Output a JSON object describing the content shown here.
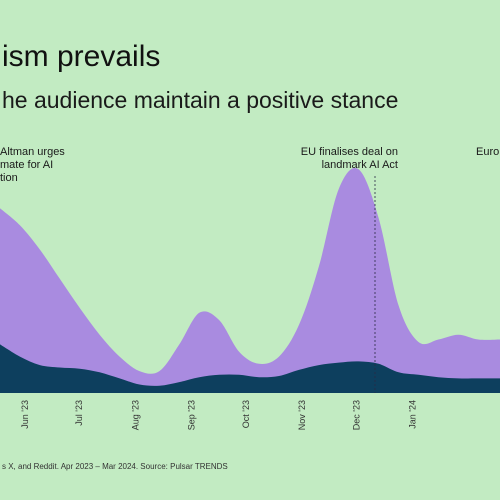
{
  "header": {
    "title": "ism prevails",
    "subtitle": "he audience maintain a positive stance"
  },
  "source": "s X, and Reddit. Apr 2023 – Mar 2024. Source: Pulsar TRENDS",
  "colors": {
    "background": "#c2ebc2",
    "positive": "#a98be0",
    "negative": "#0d3f5e"
  },
  "chart_data": {
    "type": "area",
    "stacked": true,
    "grid": false,
    "legend": "none",
    "x_range": [
      "2023-05-15",
      "2024-02-15"
    ],
    "y_range": [
      0,
      100
    ],
    "tick_labels": [
      "Jun '23",
      "Jul '23",
      "Aug '23",
      "Sep '23",
      "Oct '23",
      "Nov '23",
      "Dec '23",
      "Jan '24"
    ],
    "tick_dates": [
      "2023-06-01",
      "2023-07-01",
      "2023-08-01",
      "2023-09-01",
      "2023-10-01",
      "2023-11-01",
      "2023-12-01",
      "2024-01-01"
    ],
    "series": [
      {
        "points": [
          [
            "2023-05-15",
            20
          ],
          [
            "2023-05-26",
            15
          ],
          [
            "2023-06-06",
            11.5
          ],
          [
            "2023-06-17",
            10.5
          ],
          [
            "2023-06-28",
            10
          ],
          [
            "2023-07-09",
            8.5
          ],
          [
            "2023-07-20",
            6
          ],
          [
            "2023-07-31",
            3.5
          ],
          [
            "2023-08-11",
            3
          ],
          [
            "2023-08-22",
            4.5
          ],
          [
            "2023-09-02",
            6.5
          ],
          [
            "2023-09-13",
            7.5
          ],
          [
            "2023-09-24",
            7.5
          ],
          [
            "2023-10-05",
            6.5
          ],
          [
            "2023-10-16",
            7
          ],
          [
            "2023-10-27",
            9.5
          ],
          [
            "2023-11-07",
            11.5
          ],
          [
            "2023-11-18",
            12.5
          ],
          [
            "2023-11-29",
            13
          ],
          [
            "2023-12-10",
            12
          ],
          [
            "2023-12-21",
            8.5
          ],
          [
            "2024-01-01",
            7.5
          ],
          [
            "2024-01-12",
            6.5
          ],
          [
            "2024-01-23",
            6
          ],
          [
            "2024-02-03",
            6
          ],
          [
            "2024-02-15",
            6
          ]
        ]
      },
      {
        "points": [
          [
            "2023-05-15",
            76
          ],
          [
            "2023-05-26",
            69
          ],
          [
            "2023-06-06",
            59
          ],
          [
            "2023-06-17",
            47
          ],
          [
            "2023-06-28",
            35
          ],
          [
            "2023-07-09",
            24
          ],
          [
            "2023-07-20",
            15
          ],
          [
            "2023-07-31",
            9
          ],
          [
            "2023-08-11",
            9
          ],
          [
            "2023-08-22",
            20
          ],
          [
            "2023-09-02",
            33
          ],
          [
            "2023-09-13",
            30
          ],
          [
            "2023-09-24",
            17
          ],
          [
            "2023-10-05",
            12
          ],
          [
            "2023-10-16",
            15
          ],
          [
            "2023-10-27",
            28
          ],
          [
            "2023-11-07",
            52
          ],
          [
            "2023-11-18",
            84
          ],
          [
            "2023-11-29",
            92
          ],
          [
            "2023-12-10",
            72
          ],
          [
            "2023-12-21",
            36
          ],
          [
            "2024-01-01",
            21
          ],
          [
            "2024-01-12",
            22
          ],
          [
            "2024-01-23",
            24
          ],
          [
            "2024-02-03",
            22
          ],
          [
            "2024-02-15",
            22
          ]
        ]
      }
    ],
    "annotations": [
      {
        "date": "2023-05-25",
        "lines": [
          "Altman urges",
          "mate for AI",
          "tion"
        ]
      },
      {
        "date": "2023-12-08",
        "lines": [
          "EU finalises deal on",
          "landmark AI Act"
        ]
      },
      {
        "date": "2024-02-15",
        "lines": [
          "Euro"
        ]
      }
    ]
  }
}
